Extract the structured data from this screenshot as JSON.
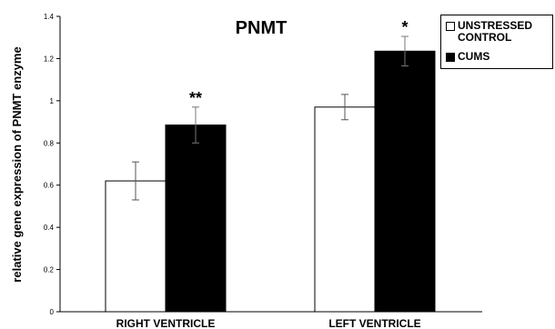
{
  "chart_data": {
    "type": "bar",
    "title": "PNMT",
    "xlabel": "",
    "ylabel": "relative gene expression of PNMT enzyme",
    "ylim": [
      0,
      1.4
    ],
    "yticks": [
      "0",
      "0.2",
      "0.4",
      "0.6",
      "0.8",
      "1",
      "1.2",
      "1.4"
    ],
    "categories": [
      "RIGHT VENTRICLE",
      "LEFT VENTRICLE"
    ],
    "series": [
      {
        "name": "UNSTRESSED CONTROL",
        "color": "#ffffff",
        "values": [
          0.62,
          0.97
        ],
        "errors": [
          0.09,
          0.06
        ],
        "annotations": [
          "",
          ""
        ]
      },
      {
        "name": "CUMS",
        "color": "#000000",
        "values": [
          0.885,
          1.235
        ],
        "errors": [
          0.085,
          0.07
        ],
        "annotations": [
          "**",
          "*"
        ]
      }
    ],
    "grid": false,
    "legend": "top-right"
  }
}
